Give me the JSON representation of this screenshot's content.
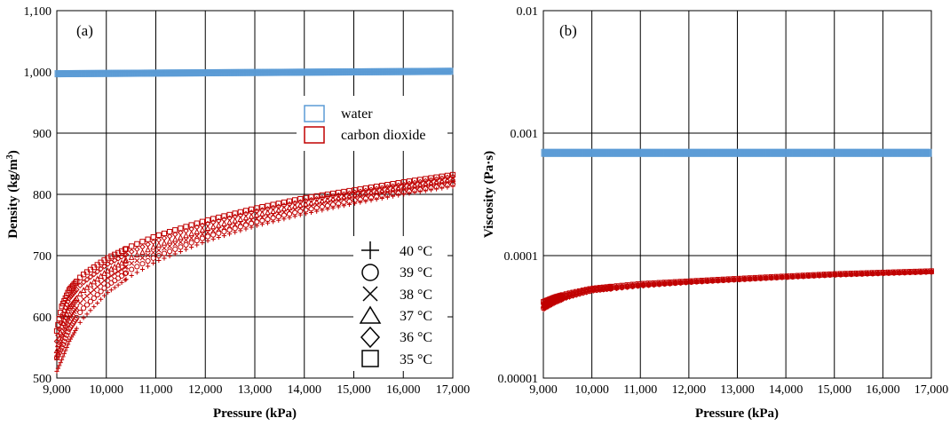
{
  "chart_data": [
    {
      "type": "scatter",
      "panel_label": "(a)",
      "xlabel": "Pressure (kPa)",
      "ylabel_main": "Density (kg/m",
      "ylabel_sup": "3",
      "ylabel_close": ")",
      "xlim": [
        9000,
        17000
      ],
      "ylim": [
        500,
        1100
      ],
      "x_ticks": [
        9000,
        10000,
        11000,
        12000,
        13000,
        14000,
        15000,
        16000,
        17000
      ],
      "x_tick_labels": [
        "9,000",
        "10,000",
        "11,000",
        "12,000",
        "13,000",
        "14,000",
        "15,000",
        "16,000",
        "17,000"
      ],
      "y_ticks": [
        500,
        600,
        700,
        800,
        900,
        1000,
        1100
      ],
      "y_tick_labels": [
        "500",
        "600",
        "700",
        "800",
        "900",
        "1,000",
        "1,100"
      ],
      "fluid_legend": [
        {
          "label": "water",
          "color": "#5b9bd5"
        },
        {
          "label": "carbon dioxide",
          "color": "#c00000"
        }
      ],
      "temperature_legend": [
        {
          "label": "40 °C",
          "marker": "plus"
        },
        {
          "label": "39 °C",
          "marker": "circle"
        },
        {
          "label": "38 °C",
          "marker": "cross"
        },
        {
          "label": "37 °C",
          "marker": "triangle"
        },
        {
          "label": "36 °C",
          "marker": "diamond"
        },
        {
          "label": "35 °C",
          "marker": "square"
        }
      ],
      "series": [
        {
          "name": "water",
          "color": "#5b9bd5",
          "x": [
            9000,
            11000,
            13000,
            15000,
            17000
          ],
          "y": [
            997,
            998,
            999,
            1000,
            1001
          ]
        },
        {
          "name": "carbon dioxide 35 °C",
          "marker": "square",
          "color": "#c00000",
          "x": [
            9000,
            9100,
            9250,
            9500,
            10000,
            10500,
            11000,
            12000,
            13000,
            14000,
            15000,
            16000,
            17000
          ],
          "y": [
            577,
            617,
            644,
            667,
            695,
            715,
            732,
            757,
            777,
            794,
            807,
            820,
            832
          ]
        },
        {
          "name": "carbon dioxide 36 °C",
          "marker": "diamond",
          "color": "#c00000",
          "x": [
            9000,
            9100,
            9250,
            9500,
            10000,
            10500,
            11000,
            12000,
            13000,
            14000,
            15000,
            16000,
            17000
          ],
          "y": [
            560,
            600,
            630,
            654,
            685,
            706,
            724,
            751,
            772,
            789,
            803,
            816,
            829
          ]
        },
        {
          "name": "carbon dioxide 37 °C",
          "marker": "triangle",
          "color": "#c00000",
          "x": [
            9000,
            9100,
            9250,
            9500,
            10000,
            10500,
            11000,
            12000,
            13000,
            14000,
            15000,
            16000,
            17000
          ],
          "y": [
            545,
            585,
            615,
            641,
            674,
            697,
            716,
            744,
            766,
            784,
            799,
            812,
            825
          ]
        },
        {
          "name": "carbon dioxide 38 °C",
          "marker": "cross",
          "color": "#c00000",
          "x": [
            9000,
            9100,
            9250,
            9500,
            10000,
            10500,
            11000,
            12000,
            13000,
            14000,
            15000,
            16000,
            17000
          ],
          "y": [
            533,
            566,
            597,
            626,
            662,
            687,
            707,
            737,
            760,
            779,
            795,
            808,
            821
          ]
        },
        {
          "name": "carbon dioxide 39 °C",
          "marker": "circle",
          "color": "#c00000",
          "x": [
            9000,
            9100,
            9250,
            9500,
            10000,
            10500,
            11000,
            12000,
            13000,
            14000,
            15000,
            16000,
            17000
          ],
          "y": [
            533,
            550,
            580,
            611,
            650,
            677,
            698,
            730,
            754,
            774,
            790,
            804,
            817
          ]
        },
        {
          "name": "carbon dioxide 40 °C",
          "marker": "plus",
          "color": "#c00000",
          "x": [
            9000,
            9100,
            9250,
            9500,
            10000,
            10500,
            11000,
            12000,
            13000,
            14000,
            15000,
            16000,
            17000
          ],
          "y": [
            511,
            530,
            560,
            595,
            638,
            667,
            690,
            723,
            748,
            768,
            785,
            800,
            813
          ]
        }
      ]
    },
    {
      "type": "scatter",
      "panel_label": "(b)",
      "xlabel": "Pressure (kPa)",
      "ylabel": "Viscosity (Pa·s)",
      "yscale": "log",
      "xlim": [
        9000,
        17000
      ],
      "ylim": [
        1e-05,
        0.01
      ],
      "x_ticks": [
        9000,
        10000,
        11000,
        12000,
        13000,
        14000,
        15000,
        16000,
        17000
      ],
      "x_tick_labels": [
        "9,000",
        "10,000",
        "11,000",
        "12,000",
        "13,000",
        "14,000",
        "15,000",
        "16,000",
        "17,000"
      ],
      "y_ticks": [
        1e-05,
        0.0001,
        0.001,
        0.01
      ],
      "y_tick_labels": [
        "0.00001",
        "0.0001",
        "0.001",
        "0.01"
      ],
      "series": [
        {
          "name": "water",
          "color": "#5b9bd5",
          "x": [
            9000,
            11000,
            13000,
            15000,
            17000
          ],
          "y": [
            0.00069,
            0.00069,
            0.00069,
            0.00069,
            0.00069
          ]
        },
        {
          "name": "carbon dioxide",
          "color": "#c00000",
          "x": [
            9000,
            9250,
            9500,
            10000,
            11000,
            12000,
            13000,
            14000,
            15000,
            16000,
            17000
          ],
          "y": [
            4.2e-05,
            4.6e-05,
            4.9e-05,
            5.4e-05,
            5.9e-05,
            6.2e-05,
            6.5e-05,
            6.8e-05,
            7.1e-05,
            7.3e-05,
            7.5e-05
          ],
          "spread_low": [
            3.6e-05,
            4.1e-05,
            4.5e-05,
            5.1e-05,
            5.6e-05,
            6e-05,
            6.3e-05,
            6.6e-05,
            6.9e-05,
            7.1e-05,
            7.3e-05
          ]
        }
      ]
    }
  ]
}
